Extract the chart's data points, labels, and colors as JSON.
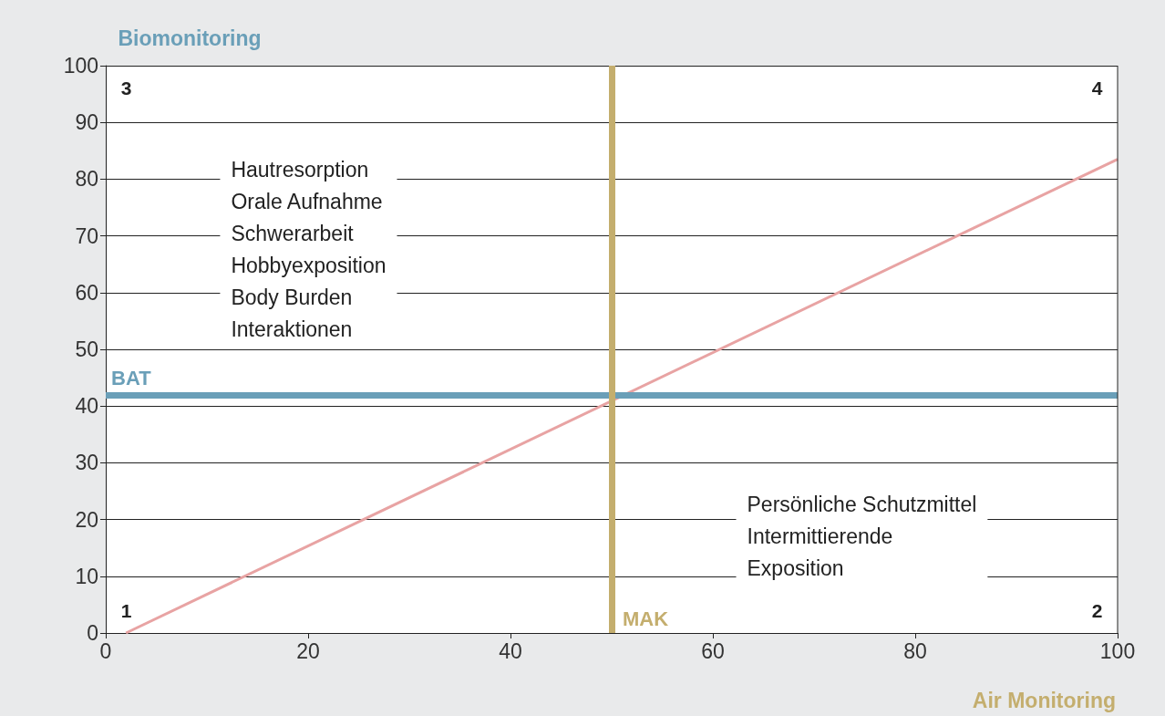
{
  "chart_data": {
    "type": "line",
    "xlabel": "Air Monitoring",
    "ylabel": "Biomonitoring",
    "x": [
      2,
      100
    ],
    "series": [
      {
        "color": "#e8a3a3",
        "values": [
          0,
          83.5
        ]
      }
    ],
    "xlim": [
      0,
      100
    ],
    "xticks": [
      0,
      20,
      40,
      60,
      80,
      100
    ],
    "ylim": [
      0,
      100
    ],
    "yticks": [
      0,
      10,
      20,
      30,
      40,
      50,
      60,
      70,
      80,
      90,
      100
    ],
    "grid": "y",
    "marker": "none",
    "line_style": "solid",
    "ref_lines": [
      {
        "axis": "y",
        "value": 42,
        "label": "BAT",
        "color": "#6a9fb8"
      },
      {
        "axis": "x",
        "value": 50,
        "label": "MAK",
        "color": "#c4ae6e"
      }
    ],
    "annotations": [
      "1",
      "2",
      "3",
      "4",
      "Hautresorption\nOrale Aufnahme\nSchwerarbeit\nHobbyexposition\nBody Burden\nInteraktionen",
      "Persönliche Schutzmittel\nIntermittierende\nExposition"
    ]
  }
}
